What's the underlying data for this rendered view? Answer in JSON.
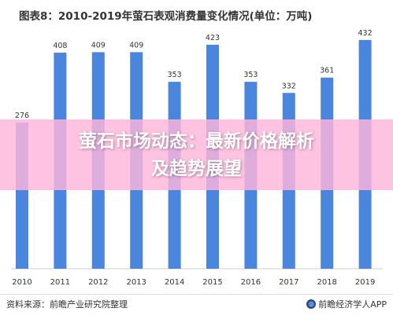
{
  "chart_data": {
    "type": "bar",
    "title": "图表8：2010-2019年萤石表观消费量变化情况(单位：万吨)",
    "categories": [
      "2010",
      "2011",
      "2012",
      "2013",
      "2014",
      "2015",
      "2016",
      "2017",
      "2018",
      "2019"
    ],
    "values": [
      276,
      408,
      409,
      409,
      353,
      423,
      353,
      332,
      361,
      432
    ],
    "ylim": [
      0,
      460
    ],
    "grid": false,
    "bar_color": "#4a86dd"
  },
  "overlay": {
    "line1": "萤石市场动态：最新价格解析",
    "line2": "及趋势展望"
  },
  "footer": {
    "source": "资料来源：前瞻产业研究院整理",
    "brand": "前瞻经济学人APP",
    "brand_icon": "qianzhan-logo-icon"
  }
}
